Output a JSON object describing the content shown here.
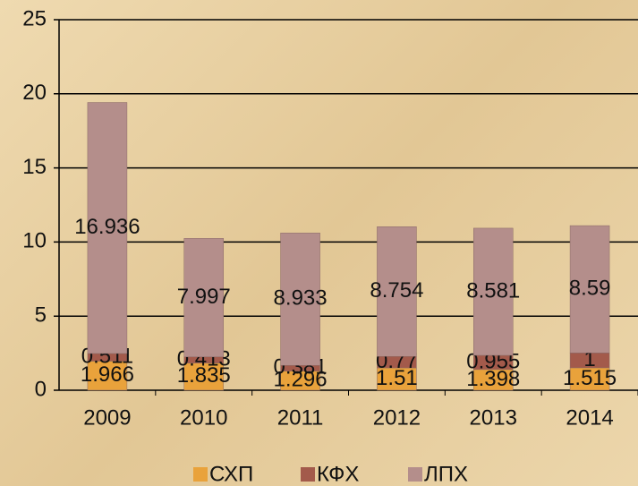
{
  "chart_data": {
    "type": "stacked_bar",
    "categories": [
      "2009",
      "2010",
      "2011",
      "2012",
      "2013",
      "2014"
    ],
    "series": [
      {
        "name": "СХП",
        "color": "#e9a23b",
        "values": [
          1.966,
          1.835,
          1.296,
          1.51,
          1.398,
          1.515
        ]
      },
      {
        "name": "КФХ",
        "color": "#a35a4b",
        "values": [
          0.511,
          0.413,
          0.381,
          0.77,
          0.955,
          1
        ]
      },
      {
        "name": "ЛПХ",
        "color": "#b48e8b",
        "values": [
          16.936,
          7.997,
          8.933,
          8.754,
          8.581,
          8.59
        ]
      }
    ],
    "ylim": [
      0,
      25
    ],
    "yticks": [
      0,
      5,
      10,
      15,
      20,
      25
    ],
    "grid": true,
    "legend": "bottom"
  }
}
